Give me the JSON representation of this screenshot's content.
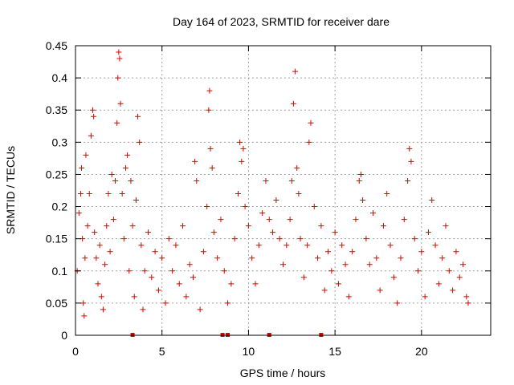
{
  "chart_data": {
    "type": "scatter",
    "title": "Day 164 of 2023, SRMTID for receiver dare",
    "xlabel": "GPS time / hours",
    "ylabel": "SRMTID / TECUs",
    "xlim": [
      0,
      24
    ],
    "ylim": [
      0,
      0.45
    ],
    "x_ticks": [
      0,
      5,
      10,
      15,
      20
    ],
    "x_tick_labels": [
      "0",
      "5",
      "10",
      "15",
      "20"
    ],
    "y_ticks": [
      0,
      0.05,
      0.1,
      0.15,
      0.2,
      0.25,
      0.3,
      0.35,
      0.4,
      0.45
    ],
    "y_tick_labels": [
      "0",
      "0.05",
      "0.1",
      "0.15",
      "0.2",
      "0.25",
      "0.3",
      "0.35",
      "0.4",
      "0.45"
    ],
    "grid": true,
    "marker": "plus",
    "colors": {
      "series": "#e00000",
      "grid": "#a0a0a0",
      "axis": "#000000"
    },
    "series": [
      {
        "name": "SRMTID",
        "points": [
          [
            0.1,
            0.1
          ],
          [
            0.2,
            0.19
          ],
          [
            0.3,
            0.22
          ],
          [
            0.35,
            0.26
          ],
          [
            0.4,
            0.15
          ],
          [
            0.45,
            0.05
          ],
          [
            0.5,
            0.03
          ],
          [
            0.55,
            0.12
          ],
          [
            0.6,
            0.28
          ],
          [
            0.7,
            0.17
          ],
          [
            0.8,
            0.22
          ],
          [
            0.9,
            0.31
          ],
          [
            1.0,
            0.35
          ],
          [
            1.05,
            0.34
          ],
          [
            1.1,
            0.16
          ],
          [
            1.2,
            0.12
          ],
          [
            1.3,
            0.08
          ],
          [
            1.4,
            0.14
          ],
          [
            1.5,
            0.06
          ],
          [
            1.6,
            0.04
          ],
          [
            1.7,
            0.11
          ],
          [
            1.8,
            0.17
          ],
          [
            1.9,
            0.22
          ],
          [
            2.0,
            0.13
          ],
          [
            2.1,
            0.25
          ],
          [
            2.2,
            0.18
          ],
          [
            2.3,
            0.24
          ],
          [
            2.4,
            0.33
          ],
          [
            2.45,
            0.4
          ],
          [
            2.5,
            0.44
          ],
          [
            2.55,
            0.43
          ],
          [
            2.6,
            0.36
          ],
          [
            2.7,
            0.22
          ],
          [
            2.8,
            0.15
          ],
          [
            2.9,
            0.26
          ],
          [
            3.0,
            0.28
          ],
          [
            3.1,
            0.1
          ],
          [
            3.2,
            0.24
          ],
          [
            3.3,
            0.17
          ],
          [
            3.4,
            0.06
          ],
          [
            3.5,
            0.21
          ],
          [
            3.6,
            0.34
          ],
          [
            3.7,
            0.3
          ],
          [
            3.8,
            0.14
          ],
          [
            3.9,
            0.04
          ],
          [
            4.0,
            0.1
          ],
          [
            4.2,
            0.16
          ],
          [
            4.4,
            0.09
          ],
          [
            4.6,
            0.13
          ],
          [
            4.8,
            0.07
          ],
          [
            5.0,
            0.12
          ],
          [
            5.2,
            0.05
          ],
          [
            5.4,
            0.15
          ],
          [
            5.6,
            0.1
          ],
          [
            5.8,
            0.14
          ],
          [
            6.0,
            0.08
          ],
          [
            6.2,
            0.17
          ],
          [
            6.4,
            0.06
          ],
          [
            6.6,
            0.11
          ],
          [
            6.8,
            0.09
          ],
          [
            6.9,
            0.27
          ],
          [
            7.0,
            0.24
          ],
          [
            7.2,
            0.04
          ],
          [
            7.4,
            0.13
          ],
          [
            7.6,
            0.2
          ],
          [
            7.7,
            0.35
          ],
          [
            7.75,
            0.38
          ],
          [
            7.8,
            0.29
          ],
          [
            7.9,
            0.26
          ],
          [
            8.0,
            0.16
          ],
          [
            8.2,
            0.12
          ],
          [
            8.4,
            0.18
          ],
          [
            8.6,
            0.1
          ],
          [
            8.8,
            0.05
          ],
          [
            9.0,
            0.08
          ],
          [
            9.2,
            0.15
          ],
          [
            9.4,
            0.22
          ],
          [
            9.5,
            0.3
          ],
          [
            9.6,
            0.27
          ],
          [
            9.7,
            0.29
          ],
          [
            9.8,
            0.2
          ],
          [
            10.0,
            0.17
          ],
          [
            10.2,
            0.12
          ],
          [
            10.4,
            0.08
          ],
          [
            10.6,
            0.14
          ],
          [
            10.8,
            0.19
          ],
          [
            11.0,
            0.24
          ],
          [
            11.2,
            0.18
          ],
          [
            11.4,
            0.16
          ],
          [
            11.6,
            0.21
          ],
          [
            11.8,
            0.15
          ],
          [
            12.0,
            0.11
          ],
          [
            12.2,
            0.14
          ],
          [
            12.4,
            0.18
          ],
          [
            12.5,
            0.24
          ],
          [
            12.6,
            0.36
          ],
          [
            12.7,
            0.41
          ],
          [
            12.8,
            0.26
          ],
          [
            12.9,
            0.22
          ],
          [
            13.0,
            0.15
          ],
          [
            13.2,
            0.09
          ],
          [
            13.4,
            0.14
          ],
          [
            13.5,
            0.3
          ],
          [
            13.6,
            0.33
          ],
          [
            13.8,
            0.2
          ],
          [
            14.0,
            0.12
          ],
          [
            14.2,
            0.17
          ],
          [
            14.4,
            0.07
          ],
          [
            14.6,
            0.13
          ],
          [
            14.8,
            0.1
          ],
          [
            15.0,
            0.16
          ],
          [
            15.2,
            0.08
          ],
          [
            15.4,
            0.14
          ],
          [
            15.6,
            0.11
          ],
          [
            15.8,
            0.06
          ],
          [
            16.0,
            0.13
          ],
          [
            16.2,
            0.18
          ],
          [
            16.4,
            0.24
          ],
          [
            16.5,
            0.25
          ],
          [
            16.6,
            0.21
          ],
          [
            16.8,
            0.15
          ],
          [
            17.0,
            0.11
          ],
          [
            17.2,
            0.19
          ],
          [
            17.4,
            0.12
          ],
          [
            17.6,
            0.07
          ],
          [
            17.8,
            0.17
          ],
          [
            18.0,
            0.22
          ],
          [
            18.2,
            0.14
          ],
          [
            18.4,
            0.09
          ],
          [
            18.6,
            0.05
          ],
          [
            18.8,
            0.12
          ],
          [
            19.0,
            0.18
          ],
          [
            19.2,
            0.24
          ],
          [
            19.3,
            0.29
          ],
          [
            19.4,
            0.27
          ],
          [
            19.6,
            0.15
          ],
          [
            19.8,
            0.1
          ],
          [
            20.0,
            0.13
          ],
          [
            20.2,
            0.06
          ],
          [
            20.4,
            0.16
          ],
          [
            20.6,
            0.21
          ],
          [
            20.8,
            0.14
          ],
          [
            21.0,
            0.08
          ],
          [
            21.2,
            0.12
          ],
          [
            21.4,
            0.17
          ],
          [
            21.6,
            0.1
          ],
          [
            21.8,
            0.07
          ],
          [
            22.0,
            0.13
          ],
          [
            22.2,
            0.09
          ],
          [
            22.4,
            0.11
          ],
          [
            22.6,
            0.06
          ],
          [
            22.7,
            0.05
          ]
        ]
      }
    ],
    "zero_markers": [
      3.3,
      8.5,
      8.8,
      11.2,
      14.2
    ]
  }
}
